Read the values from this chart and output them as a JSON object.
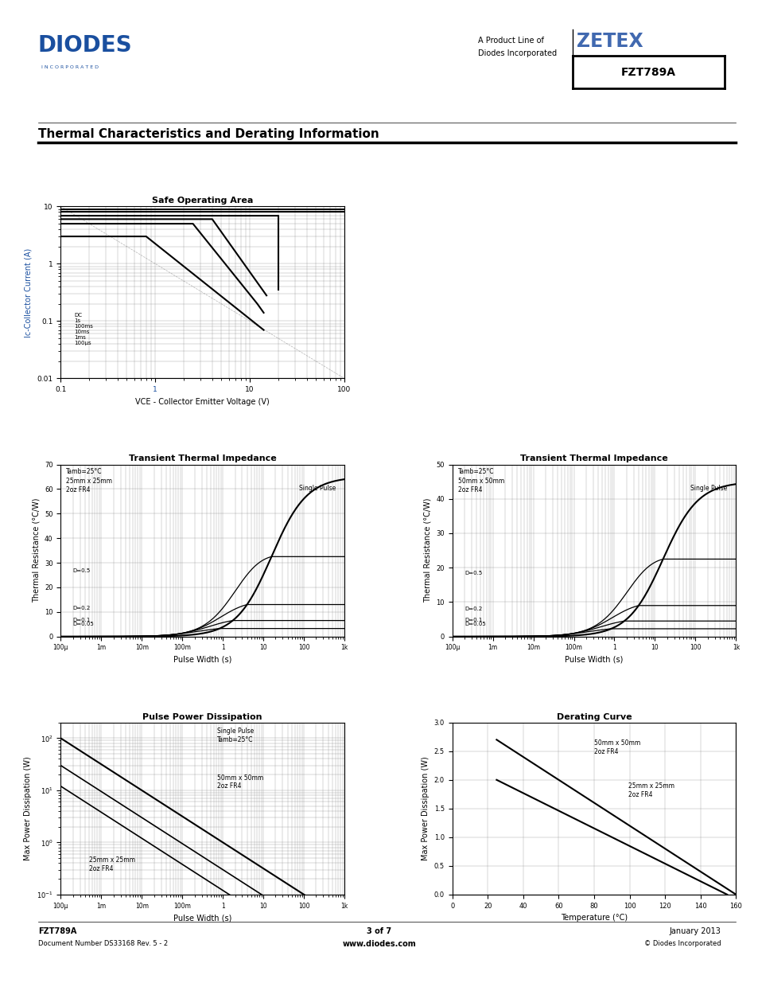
{
  "title": "Thermal Characteristics and Derating Information",
  "brand": "FZT789A",
  "footer_left1": "FZT789A",
  "footer_left2": "Document Number DS33168 Rev. 5 - 2",
  "footer_center1": "3 of 7",
  "footer_center2": "www.diodes.com",
  "footer_right1": "January 2013",
  "footer_right2": "© Diodes Incorporated",
  "soa_xlabel": "VCE - Collector Emitter Voltage (V)",
  "soa_ylabel": "Ic-Collector Current (A)",
  "soa_title": "Safe Operating Area",
  "tti1_xlabel": "Pulse Width (s)",
  "tti1_ylabel": "Thermal Resistance (°C/W)",
  "tti1_title": "Transient Thermal Impedance",
  "tti1_annotation": "Tamb=25°C\n25mm x 25mm\n2oz FR4",
  "tti1_ylim": [
    0,
    70
  ],
  "tti1_yticks": [
    0,
    10,
    20,
    30,
    40,
    50,
    60,
    70
  ],
  "tti2_xlabel": "Pulse Width (s)",
  "tti2_ylabel": "Thermal Resistance (°C/W)",
  "tti2_title": "Transient Thermal Impedance",
  "tti2_annotation": "Tamb=25°C\n50mm x 50mm\n2oz FR4",
  "tti2_ylim": [
    0,
    50
  ],
  "tti2_yticks": [
    0,
    10,
    20,
    30,
    40,
    50
  ],
  "ppd_xlabel": "Pulse Width (s)",
  "ppd_ylabel": "Max Power Dissipation (W)",
  "ppd_title": "Pulse Power Dissipation",
  "dc_xlabel": "Temperature (°C)",
  "dc_ylabel": "Max Power Dissipation (W)",
  "dc_title": "Derating Curve",
  "blue_color": "#1a4f9f",
  "grid_color": "#999999",
  "line_color": "#000000",
  "zetex_color": "#4169B0"
}
